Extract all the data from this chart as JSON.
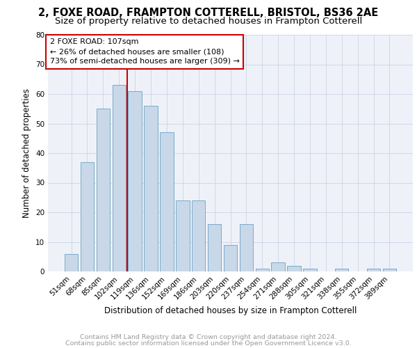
{
  "title1": "2, FOXE ROAD, FRAMPTON COTTERELL, BRISTOL, BS36 2AE",
  "title2": "Size of property relative to detached houses in Frampton Cotterell",
  "xlabel": "Distribution of detached houses by size in Frampton Cotterell",
  "ylabel": "Number of detached properties",
  "categories": [
    "51sqm",
    "68sqm",
    "85sqm",
    "102sqm",
    "119sqm",
    "136sqm",
    "152sqm",
    "169sqm",
    "186sqm",
    "203sqm",
    "220sqm",
    "237sqm",
    "254sqm",
    "271sqm",
    "288sqm",
    "305sqm",
    "321sqm",
    "338sqm",
    "355sqm",
    "372sqm",
    "389sqm"
  ],
  "values": [
    6,
    37,
    55,
    63,
    61,
    56,
    47,
    24,
    24,
    16,
    9,
    16,
    1,
    3,
    2,
    1,
    0,
    1,
    0,
    1,
    1
  ],
  "bar_color": "#c8d8e8",
  "bar_edge_color": "#7aaac8",
  "vline_index": 3,
  "vline_color": "#cc0000",
  "annotation_line1": "2 FOXE ROAD: 107sqm",
  "annotation_line2": "← 26% of detached houses are smaller (108)",
  "annotation_line3": "73% of semi-detached houses are larger (309) →",
  "annotation_box_color": "#ffffff",
  "annotation_box_edge": "#cc0000",
  "ylim": [
    0,
    80
  ],
  "yticks": [
    0,
    10,
    20,
    30,
    40,
    50,
    60,
    70,
    80
  ],
  "grid_color": "#d0d8e8",
  "background_color": "#eef2f8",
  "footer1": "Contains HM Land Registry data © Crown copyright and database right 2024.",
  "footer2": "Contains public sector information licensed under the Open Government Licence v3.0.",
  "title1_fontsize": 10.5,
  "title2_fontsize": 9.5,
  "xlabel_fontsize": 8.5,
  "ylabel_fontsize": 8.5,
  "tick_fontsize": 7.5,
  "annotation_fontsize": 8,
  "footer_fontsize": 6.8
}
